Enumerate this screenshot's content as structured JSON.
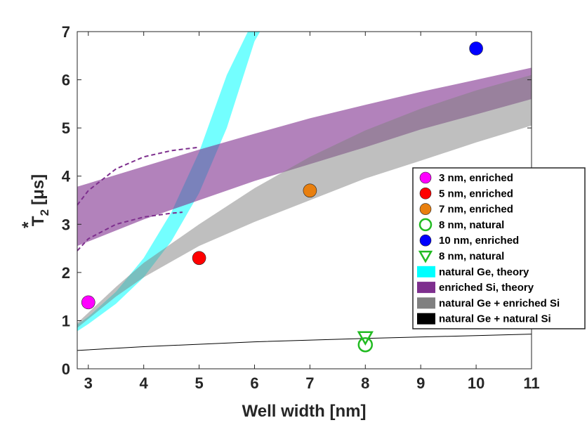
{
  "chart_data": {
    "type": "scatter",
    "title": "",
    "xlabel": "Well width [nm]",
    "ylabel_main": "T",
    "ylabel_sup": "*",
    "ylabel_sub": "2",
    "ylabel_units": "[μs]",
    "xlim": [
      2.8,
      11
    ],
    "ylim": [
      0,
      7
    ],
    "xticks": [
      3,
      4,
      5,
      6,
      7,
      8,
      9,
      10,
      11
    ],
    "yticks": [
      0,
      1,
      2,
      3,
      4,
      5,
      6,
      7
    ],
    "legend_position": "right",
    "series": [
      {
        "name": "3 nm, enriched",
        "marker": "circle",
        "filled": true,
        "color": "#ff00ff",
        "points": [
          [
            3,
            1.38
          ]
        ]
      },
      {
        "name": "5 nm, enriched",
        "marker": "circle",
        "filled": true,
        "color": "#ff0000",
        "points": [
          [
            5,
            2.3
          ]
        ]
      },
      {
        "name": "7 nm, enriched",
        "marker": "circle",
        "filled": true,
        "color": "#e87f0f",
        "points": [
          [
            7,
            3.7
          ]
        ]
      },
      {
        "name": "8 nm, natural",
        "marker": "circle",
        "filled": false,
        "color": "#22bb22",
        "points": [
          [
            8,
            0.5
          ]
        ]
      },
      {
        "name": "10 nm, enriched",
        "marker": "circle",
        "filled": true,
        "color": "#0000ff",
        "points": [
          [
            10,
            6.65
          ]
        ]
      },
      {
        "name": "8 nm, natural",
        "marker": "triangle-down",
        "filled": false,
        "color": "#22bb22",
        "points": [
          [
            8,
            0.65
          ]
        ]
      }
    ],
    "bands": [
      {
        "name": "natural Ge, theory",
        "color": "#00ffff",
        "opacity": 0.55,
        "lower": [
          [
            2.8,
            0.78
          ],
          [
            3,
            0.93
          ],
          [
            3.5,
            1.35
          ],
          [
            4,
            1.9
          ],
          [
            4.5,
            2.65
          ],
          [
            5,
            3.65
          ],
          [
            5.5,
            5.0
          ],
          [
            6,
            6.8
          ],
          [
            6.1,
            7.0
          ]
        ],
        "upper": [
          [
            2.8,
            0.92
          ],
          [
            3,
            1.08
          ],
          [
            3.5,
            1.6
          ],
          [
            4,
            2.3
          ],
          [
            4.5,
            3.25
          ],
          [
            5,
            4.5
          ],
          [
            5.5,
            6.1
          ],
          [
            5.88,
            7.0
          ]
        ]
      },
      {
        "name": "enriched Si, theory",
        "color": "#7e2f8e",
        "opacity": 0.6,
        "lower": [
          [
            2.8,
            2.55
          ],
          [
            4,
            3.1
          ],
          [
            5,
            3.5
          ],
          [
            6,
            3.9
          ],
          [
            7,
            4.25
          ],
          [
            8,
            4.6
          ],
          [
            9,
            4.97
          ],
          [
            10,
            5.28
          ],
          [
            11,
            5.6
          ]
        ],
        "upper": [
          [
            2.8,
            3.78
          ],
          [
            4,
            4.2
          ],
          [
            5,
            4.55
          ],
          [
            6,
            4.88
          ],
          [
            7,
            5.2
          ],
          [
            8,
            5.48
          ],
          [
            9,
            5.75
          ],
          [
            10,
            6.0
          ],
          [
            11,
            6.25
          ]
        ]
      },
      {
        "name": "natural Ge + enriched Si",
        "color": "#808080",
        "opacity": 0.5,
        "lower": [
          [
            2.8,
            0.85
          ],
          [
            3.5,
            1.5
          ],
          [
            4,
            1.9
          ],
          [
            5,
            2.55
          ],
          [
            6,
            3.05
          ],
          [
            7,
            3.5
          ],
          [
            8,
            3.95
          ],
          [
            9,
            4.32
          ],
          [
            10,
            4.7
          ],
          [
            11,
            5.05
          ]
        ],
        "upper": [
          [
            2.8,
            0.95
          ],
          [
            3.5,
            1.7
          ],
          [
            4,
            2.2
          ],
          [
            5,
            3.0
          ],
          [
            6,
            3.75
          ],
          [
            7,
            4.4
          ],
          [
            8,
            4.95
          ],
          [
            9,
            5.4
          ],
          [
            10,
            5.78
          ],
          [
            11,
            6.1
          ]
        ]
      }
    ],
    "lines": [
      {
        "name": "natural Ge + natural Si",
        "color": "#000000",
        "style": "solid",
        "points": [
          [
            2.8,
            0.38
          ],
          [
            4,
            0.46
          ],
          [
            6,
            0.56
          ],
          [
            8,
            0.63
          ],
          [
            10,
            0.69
          ],
          [
            11,
            0.72
          ]
        ]
      },
      {
        "name": "enriched Si upper dashed",
        "color": "#7e2f8e",
        "style": "dashed",
        "legend": false,
        "points": [
          [
            2.8,
            3.4
          ],
          [
            3,
            3.7
          ],
          [
            3.5,
            4.15
          ],
          [
            4,
            4.4
          ],
          [
            4.5,
            4.53
          ],
          [
            5,
            4.6
          ]
        ]
      },
      {
        "name": "enriched Si lower dashed",
        "color": "#7e2f8e",
        "style": "dashed",
        "legend": false,
        "points": [
          [
            2.8,
            2.45
          ],
          [
            3,
            2.7
          ],
          [
            3.5,
            3.0
          ],
          [
            4,
            3.15
          ],
          [
            4.5,
            3.23
          ],
          [
            4.7,
            3.25
          ]
        ]
      }
    ],
    "legend": [
      {
        "label": "3 nm, enriched",
        "kind": "marker-circle-filled",
        "color": "#ff00ff"
      },
      {
        "label": "5 nm, enriched",
        "kind": "marker-circle-filled",
        "color": "#ff0000"
      },
      {
        "label": "7 nm, enriched",
        "kind": "marker-circle-filled",
        "color": "#e87f0f"
      },
      {
        "label": "8 nm, natural",
        "kind": "marker-circle-open",
        "color": "#22bb22"
      },
      {
        "label": "10 nm, enriched",
        "kind": "marker-circle-filled",
        "color": "#0000ff"
      },
      {
        "label": "8 nm, natural",
        "kind": "marker-triangle-open",
        "color": "#22bb22"
      },
      {
        "label": "natural Ge, theory",
        "kind": "patch",
        "color": "#00ffff"
      },
      {
        "label": "enriched Si, theory",
        "kind": "patch",
        "color": "#7e2f8e"
      },
      {
        "label": "natural Ge + enriched Si",
        "kind": "patch",
        "color": "#808080"
      },
      {
        "label": "natural Ge + natural Si",
        "kind": "patch",
        "color": "#000000"
      }
    ]
  }
}
